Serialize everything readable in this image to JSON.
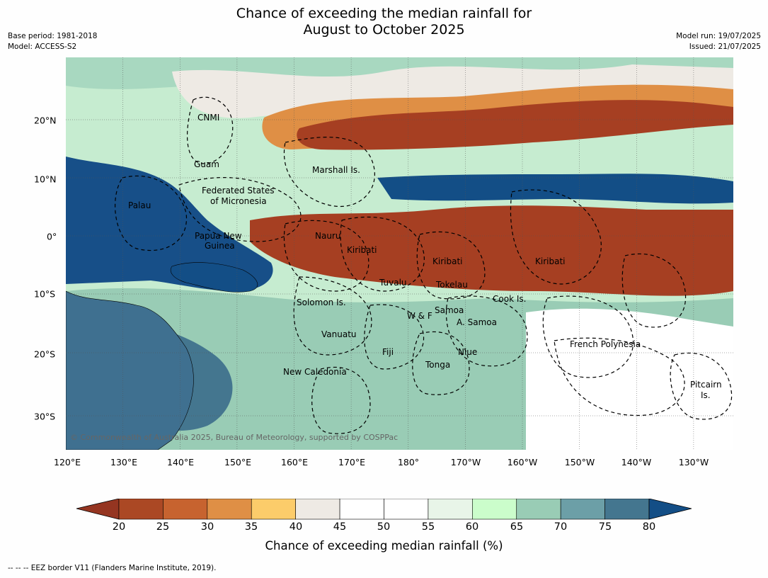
{
  "title": {
    "line1": "Chance of exceeding the median rainfall for",
    "line2": "August to October 2025"
  },
  "meta": {
    "base_period": "Base period: 1981-2018",
    "model": "Model: ACCESS-S2",
    "model_run": "Model run: 19/07/2025",
    "issued": "Issued: 21/07/2025"
  },
  "map": {
    "longitude_labels": [
      "120°E",
      "130°E",
      "140°E",
      "150°E",
      "160°E",
      "170°E",
      "180°",
      "170°W",
      "160°W",
      "150°W",
      "140°W",
      "130°W"
    ],
    "latitude_labels": [
      "20°N",
      "10°N",
      "0°",
      "10°S",
      "20°S",
      "30°S"
    ],
    "region_labels": [
      "CNMI",
      "Guam",
      "Marshall Is.",
      "Federated States",
      "of Micronesia",
      "Palau",
      "Papua New",
      "Guinea",
      "Nauru",
      "Kiribati",
      "Kiribati",
      "Kiribati",
      "Tuvalu",
      "Tokelau",
      "Cook Is.",
      "Solomon Is.",
      "W & F",
      "Samoa",
      "A. Samoa",
      "Vanuatu",
      "Fiji",
      "Niue",
      "Tonga",
      "French Polynesia",
      "New Caledonia",
      "Pitcairn",
      "Is."
    ],
    "copyright": "© Commonwealth of Australia 2025, Bureau of Meteorology, supported by COSPPac"
  },
  "colorbar": {
    "ticks": [
      "20",
      "25",
      "30",
      "35",
      "40",
      "45",
      "50",
      "55",
      "60",
      "65",
      "70",
      "75",
      "80"
    ],
    "colors": [
      "#ab4824",
      "#c7632f",
      "#df8f45",
      "#fccc6a",
      "#eeeae4",
      "#ffffff",
      "#ffffff",
      "#e8f5e8",
      "#cbfdcb",
      "#99ccb5",
      "#6c9fa7",
      "#44768f"
    ],
    "under_color": "#953521",
    "over_color": "#134e86",
    "title": "Chance of exceeding median rainfall (%)"
  },
  "footer": "--  --  -- EEZ border V11 (Flanders Marine Institute, 2019)."
}
